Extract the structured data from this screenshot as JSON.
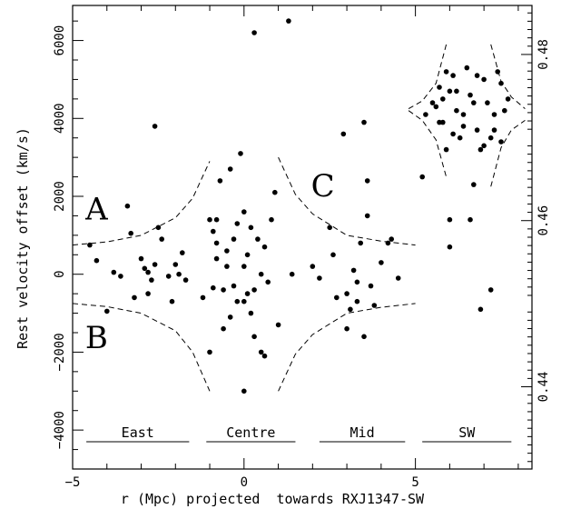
{
  "chart_data": {
    "type": "scatter",
    "xlabel": "r (Mpc) projected  towards RXJ1347-SW",
    "ylabel": "Rest velocity offset (km/s)",
    "y2label": "",
    "xlim": [
      -5,
      8.4
    ],
    "ylim": [
      -5000,
      6900
    ],
    "y2lim": [
      0.4301,
      0.4859
    ],
    "x_ticks": [
      -5,
      0,
      5
    ],
    "y_ticks": [
      -4000,
      -2000,
      0,
      2000,
      4000,
      6000
    ],
    "y2_ticks": [
      0.44,
      0.46,
      0.48
    ],
    "x_tick_labels": [
      "−5",
      "0",
      "5"
    ],
    "y_tick_labels": [
      "−4000",
      "−2000",
      "0",
      "2000",
      "4000",
      "6000"
    ],
    "y2_tick_labels": [
      "0.44",
      "0.46",
      "0.48"
    ],
    "grid": false,
    "legend": "none",
    "region_labels": [
      {
        "text": "A",
        "x": -4.3,
        "y": 1400
      },
      {
        "text": "B",
        "x": -4.3,
        "y": -1900
      },
      {
        "text": "C",
        "x": 2.3,
        "y": 2000
      }
    ],
    "segments": [
      {
        "label": "East",
        "x_start": -4.6,
        "x_end": -1.6
      },
      {
        "label": "Centre",
        "x_start": -1.1,
        "x_end": 1.5
      },
      {
        "label": "Mid",
        "x_start": 2.2,
        "x_end": 4.7
      },
      {
        "label": "SW",
        "x_start": 5.2,
        "x_end": 7.8
      }
    ],
    "caustic_curves": [
      {
        "name": "",
        "points": [
          [
            -5.0,
            750
          ],
          [
            -4.0,
            830
          ],
          [
            -3.0,
            1000
          ],
          [
            -2.0,
            1450
          ],
          [
            -1.5,
            1950
          ],
          [
            -1.0,
            2900
          ]
        ]
      },
      {
        "name": "",
        "points": [
          [
            -5.0,
            -750
          ],
          [
            -4.0,
            -830
          ],
          [
            -3.0,
            -1000
          ],
          [
            -2.0,
            -1450
          ],
          [
            -1.5,
            -2000
          ],
          [
            -1.0,
            -3000
          ]
        ]
      },
      {
        "name": "",
        "points": [
          [
            1.0,
            3000
          ],
          [
            1.5,
            2050
          ],
          [
            2.0,
            1550
          ],
          [
            3.0,
            1000
          ],
          [
            4.0,
            850
          ],
          [
            5.0,
            750
          ]
        ]
      },
      {
        "name": "",
        "points": [
          [
            1.0,
            -3000
          ],
          [
            1.5,
            -2050
          ],
          [
            2.0,
            -1550
          ],
          [
            3.0,
            -1000
          ],
          [
            4.0,
            -850
          ],
          [
            5.0,
            -750
          ]
        ]
      },
      {
        "name": "",
        "points": [
          [
            4.8,
            4250
          ],
          [
            5.2,
            4450
          ],
          [
            5.6,
            4900
          ],
          [
            5.9,
            5900
          ]
        ]
      },
      {
        "name": "",
        "points": [
          [
            4.8,
            4200
          ],
          [
            5.2,
            3950
          ],
          [
            5.6,
            3450
          ],
          [
            5.9,
            2500
          ]
        ]
      },
      {
        "name": "",
        "points": [
          [
            7.2,
            5900
          ],
          [
            7.5,
            4950
          ],
          [
            7.8,
            4550
          ],
          [
            8.2,
            4250
          ]
        ]
      },
      {
        "name": "",
        "points": [
          [
            7.2,
            2250
          ],
          [
            7.5,
            3250
          ],
          [
            7.8,
            3700
          ],
          [
            8.2,
            3950
          ]
        ]
      }
    ],
    "points": [
      [
        -4.5,
        750
      ],
      [
        -4.3,
        350
      ],
      [
        -4.0,
        -950
      ],
      [
        -3.8,
        50
      ],
      [
        -3.6,
        -50
      ],
      [
        -3.4,
        1750
      ],
      [
        -3.3,
        1050
      ],
      [
        -3.2,
        -600
      ],
      [
        -3.0,
        400
      ],
      [
        -2.9,
        150
      ],
      [
        -2.8,
        -500
      ],
      [
        -2.8,
        50
      ],
      [
        -2.7,
        -150
      ],
      [
        -2.6,
        3800
      ],
      [
        -2.6,
        250
      ],
      [
        -2.5,
        1200
      ],
      [
        -2.4,
        900
      ],
      [
        -2.2,
        -50
      ],
      [
        -2.1,
        -700
      ],
      [
        -2.0,
        250
      ],
      [
        -1.9,
        0
      ],
      [
        -1.8,
        550
      ],
      [
        -1.7,
        -150
      ],
      [
        -1.2,
        -600
      ],
      [
        -1.0,
        -2000
      ],
      [
        -1.0,
        1400
      ],
      [
        -0.9,
        1100
      ],
      [
        -0.9,
        -350
      ],
      [
        -0.8,
        800
      ],
      [
        -0.8,
        400
      ],
      [
        -0.8,
        1400
      ],
      [
        -0.7,
        2400
      ],
      [
        -0.6,
        -1400
      ],
      [
        -0.5,
        600
      ],
      [
        -0.5,
        200
      ],
      [
        -0.4,
        -1100
      ],
      [
        -0.4,
        2700
      ],
      [
        -0.3,
        -300
      ],
      [
        -0.3,
        900
      ],
      [
        -0.2,
        1300
      ],
      [
        -0.2,
        -700
      ],
      [
        -0.1,
        3100
      ],
      [
        0.0,
        1600
      ],
      [
        0.0,
        200
      ],
      [
        0.0,
        -3000
      ],
      [
        0.1,
        -500
      ],
      [
        0.1,
        500
      ],
      [
        0.2,
        -1000
      ],
      [
        0.2,
        1200
      ],
      [
        0.3,
        6200
      ],
      [
        0.3,
        -1600
      ],
      [
        0.4,
        900
      ],
      [
        0.5,
        0
      ],
      [
        0.5,
        -2000
      ],
      [
        0.6,
        700
      ],
      [
        0.7,
        -200
      ],
      [
        0.8,
        1400
      ],
      [
        0.9,
        2100
      ],
      [
        1.0,
        -1300
      ],
      [
        0.6,
        -2100
      ],
      [
        -0.6,
        -400
      ],
      [
        0.0,
        -700
      ],
      [
        0.3,
        -400
      ],
      [
        1.3,
        6500
      ],
      [
        1.4,
        0
      ],
      [
        2.0,
        200
      ],
      [
        2.2,
        -100
      ],
      [
        2.5,
        1200
      ],
      [
        2.6,
        500
      ],
      [
        2.7,
        -600
      ],
      [
        2.9,
        3600
      ],
      [
        3.0,
        -1400
      ],
      [
        3.1,
        -900
      ],
      [
        3.2,
        100
      ],
      [
        3.3,
        -200
      ],
      [
        3.4,
        800
      ],
      [
        3.5,
        3900
      ],
      [
        3.5,
        -1600
      ],
      [
        3.6,
        2400
      ],
      [
        3.6,
        1500
      ],
      [
        3.7,
        -300
      ],
      [
        3.8,
        -800
      ],
      [
        4.0,
        300
      ],
      [
        4.2,
        800
      ],
      [
        4.3,
        900
      ],
      [
        4.5,
        -100
      ],
      [
        3.0,
        -500
      ],
      [
        3.3,
        -700
      ],
      [
        5.2,
        2500
      ],
      [
        5.6,
        4300
      ],
      [
        5.7,
        3900
      ],
      [
        5.8,
        4500
      ],
      [
        5.9,
        5200
      ],
      [
        6.0,
        1400
      ],
      [
        6.0,
        700
      ],
      [
        6.0,
        4700
      ],
      [
        6.1,
        5100
      ],
      [
        6.2,
        4200
      ],
      [
        6.3,
        3500
      ],
      [
        6.4,
        4100
      ],
      [
        6.5,
        5300
      ],
      [
        6.6,
        1400
      ],
      [
        6.6,
        4600
      ],
      [
        6.7,
        2300
      ],
      [
        6.8,
        3700
      ],
      [
        6.9,
        -900
      ],
      [
        7.0,
        5000
      ],
      [
        7.1,
        4400
      ],
      [
        7.2,
        3500
      ],
      [
        7.2,
        -400
      ],
      [
        7.3,
        4100
      ],
      [
        7.4,
        5200
      ],
      [
        7.5,
        3400
      ],
      [
        7.5,
        4900
      ],
      [
        5.5,
        4400
      ],
      [
        5.9,
        3200
      ],
      [
        6.4,
        3800
      ],
      [
        6.9,
        3200
      ],
      [
        7.7,
        4500
      ],
      [
        6.2,
        4700
      ],
      [
        5.3,
        4100
      ],
      [
        7.0,
        3300
      ],
      [
        6.7,
        4400
      ],
      [
        5.7,
        4800
      ],
      [
        6.8,
        5100
      ],
      [
        7.3,
        3700
      ],
      [
        6.1,
        3600
      ],
      [
        5.8,
        3900
      ],
      [
        7.6,
        4200
      ]
    ]
  }
}
